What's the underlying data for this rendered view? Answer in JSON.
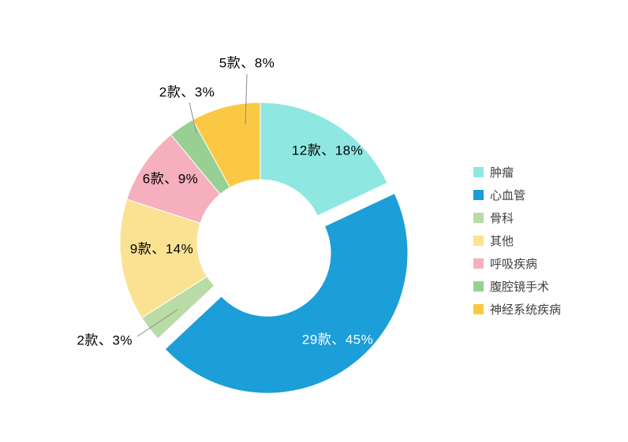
{
  "chart_data": {
    "type": "pie",
    "subtype": "donut",
    "title": "",
    "legend_position": "right",
    "direction": "clockwise",
    "start_angle_deg": 0,
    "exploded_index": 1,
    "categories": [
      "肿瘤",
      "心血管",
      "骨科",
      "其他",
      "呼吸疾病",
      "腹腔镜手术",
      "神经系统疾病"
    ],
    "counts": [
      12,
      29,
      2,
      9,
      6,
      2,
      5
    ],
    "percents": [
      18,
      45,
      3,
      14,
      9,
      3,
      8
    ],
    "labels": [
      "12款、18%",
      "29款、45%",
      "2款、3%",
      "9款、14%",
      "6款、9%",
      "2款、3%",
      "5款、8%"
    ],
    "label_placement": [
      "inside",
      "inside",
      "outside",
      "inside",
      "inside",
      "outside",
      "outside"
    ],
    "colors": [
      "#8FE7E2",
      "#1C9ED9",
      "#B9DCA6",
      "#FBE293",
      "#F5AFBD",
      "#97D092",
      "#FBC843"
    ],
    "label_colors": [
      "#000000",
      "#FFFFFF",
      "#000000",
      "#000000",
      "#000000",
      "#000000",
      "#000000"
    ],
    "leader_line_color": "#8C8C8C",
    "background_color": "#FFFFFF"
  }
}
